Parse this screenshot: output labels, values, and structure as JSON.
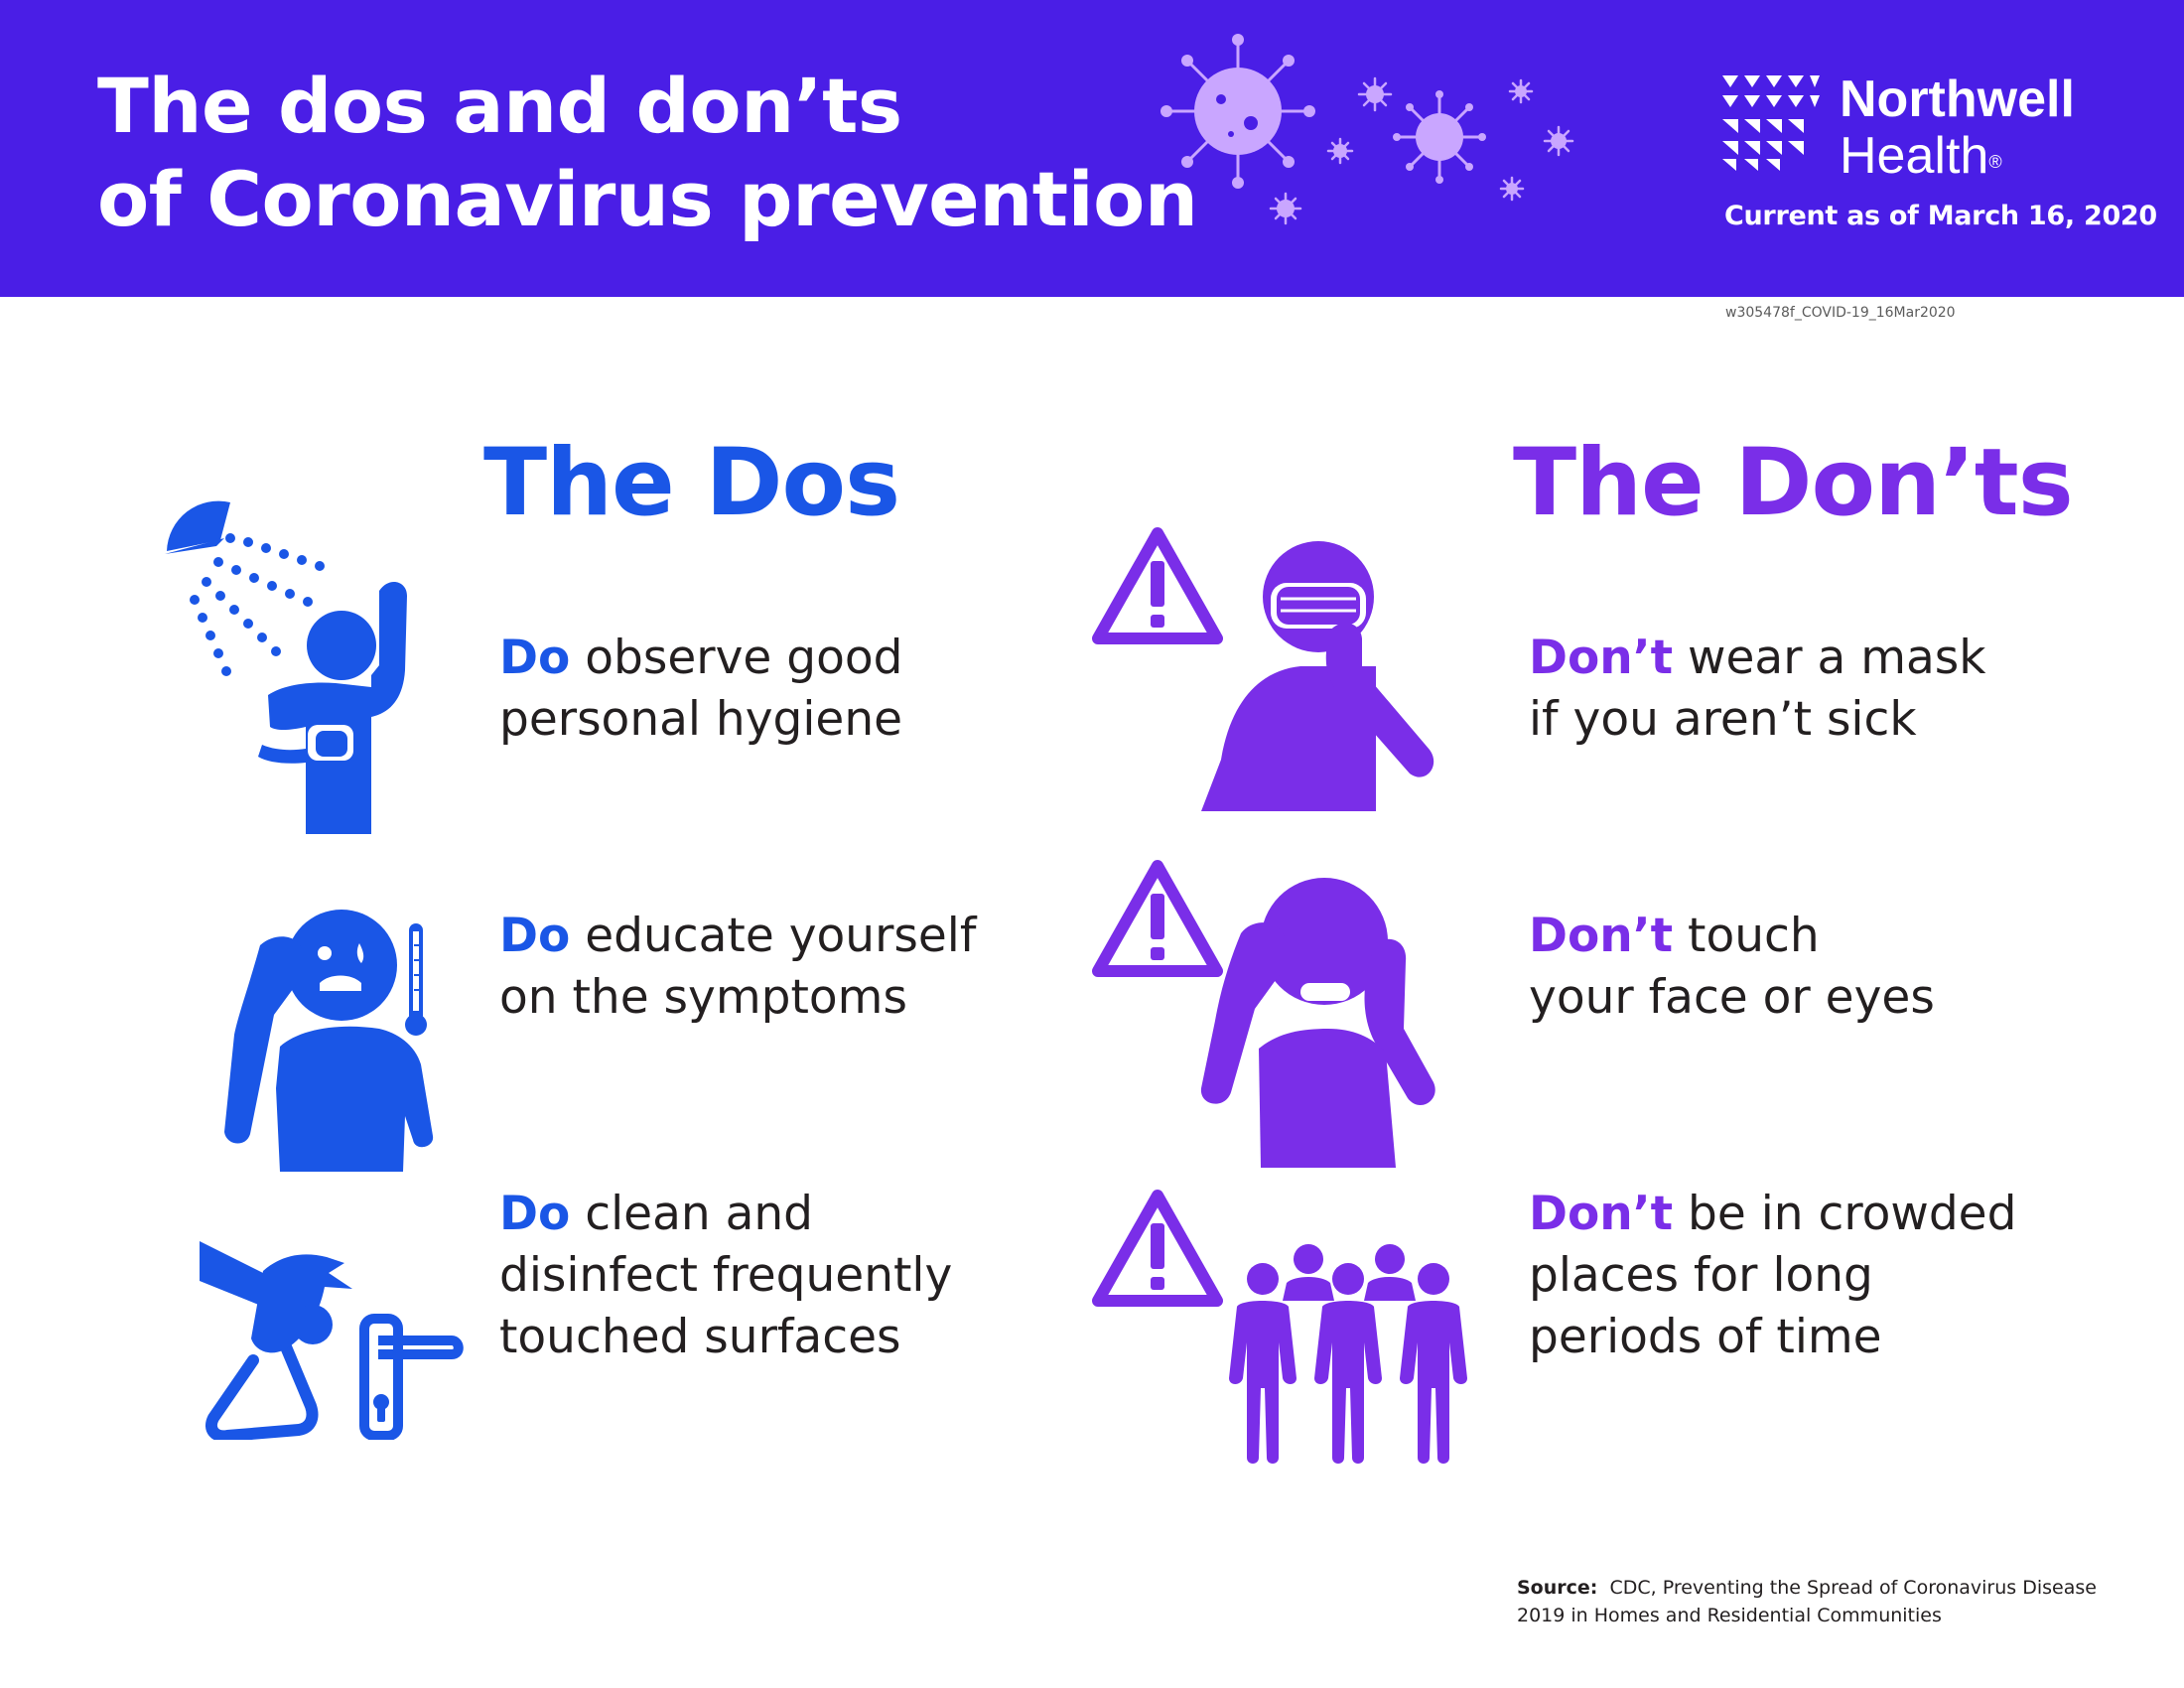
{
  "header": {
    "title_line1": "The dos and don’ts",
    "title_line2": "of Coronavirus prevention",
    "brand_line1": "Northwell",
    "brand_line2": "Health",
    "brand_mark": "®",
    "current_as_of": "Current as of March 16, 2020",
    "doc_code": "w305478f_COVID-19_16Mar2020",
    "background_color": "#4a1ee6"
  },
  "dos": {
    "heading": "The Dos",
    "color": "#1a56e6",
    "items": [
      {
        "keyword": "Do",
        "line1": " observe good",
        "line2": "personal hygiene",
        "line3": "",
        "icon": "shower-person-icon"
      },
      {
        "keyword": "Do",
        "line1": " educate yourself",
        "line2": "on the symptoms",
        "line3": "",
        "icon": "sick-person-thermometer-icon"
      },
      {
        "keyword": "Do",
        "line1": " clean and",
        "line2": "disinfect frequently",
        "line3": "touched surfaces",
        "icon": "spray-door-handle-icon"
      }
    ]
  },
  "donts": {
    "heading": "The Don’ts",
    "color": "#7a2ee8",
    "items": [
      {
        "keyword": "Don’t",
        "line1": " wear a mask",
        "line2": "if you aren’t sick",
        "line3": "",
        "icon": "masked-person-icon"
      },
      {
        "keyword": "Don’t",
        "line1": " touch",
        "line2": "your face or eyes",
        "line3": "",
        "icon": "face-touching-person-icon"
      },
      {
        "keyword": "Don’t",
        "line1": " be in crowded",
        "line2": "places for long",
        "line3": "periods of time",
        "icon": "crowd-icon"
      }
    ]
  },
  "source": {
    "label": "Source:",
    "text_line1": "CDC, Preventing the Spread of Coronavirus Disease",
    "text_line2": "2019 in Homes and Residential Communities"
  }
}
